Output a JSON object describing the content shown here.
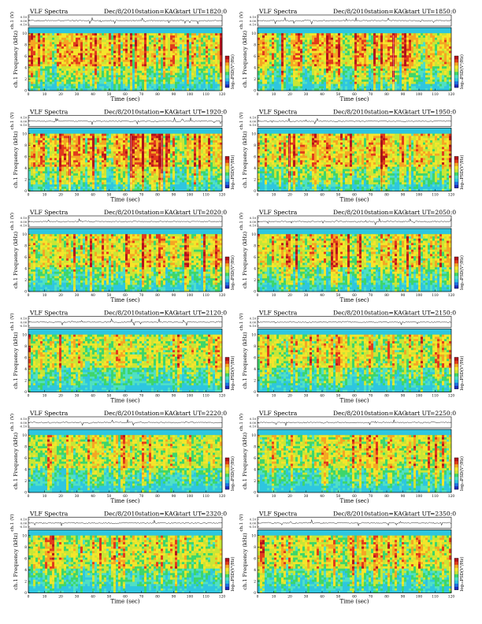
{
  "chart_data": [
    {
      "type": "heatmap",
      "title": "VLF Spectra",
      "date": "Dec/8/2010",
      "station": "station=KAG",
      "start_label": "start  UT",
      "start_time": "=1820:0",
      "ts_ylabel": "ch.1 (V)",
      "ts_ticks": [
        "0.10",
        "0.00",
        "-0.10"
      ],
      "ylabel": "ch.1 Frequency  (kHz)",
      "y_ticks": [
        "0",
        "2",
        "4",
        "6",
        "8",
        "10"
      ],
      "xlabel": "Time  (sec)",
      "x_ticks": [
        "0",
        "10",
        "20",
        "30",
        "40",
        "50",
        "60",
        "70",
        "80",
        "90",
        "100",
        "110",
        "120"
      ],
      "xlim": [
        0,
        120
      ],
      "ylim": [
        0,
        10
      ],
      "colorbar_label": "log₁₀PSD(V²/Hz)",
      "activity": "strong"
    },
    {
      "type": "heatmap",
      "title": "VLF Spectra",
      "date": "Dec/8/2010",
      "station": "station=KAG",
      "start_label": "start  UT",
      "start_time": "=1850:0",
      "ts_ylabel": "ch.1 (V)",
      "ts_ticks": [
        "0.10",
        "0.00",
        "-0.10"
      ],
      "ylabel": "ch.1 Frequency  (kHz)",
      "y_ticks": [
        "0",
        "2",
        "4",
        "6",
        "8",
        "10"
      ],
      "xlabel": "Time  (sec)",
      "x_ticks": [
        "0",
        "10",
        "20",
        "30",
        "40",
        "50",
        "60",
        "70",
        "80",
        "90",
        "100",
        "110",
        "120"
      ],
      "xlim": [
        0,
        120
      ],
      "ylim": [
        0,
        10
      ],
      "colorbar_label": "log₁₀PSD(V²/Hz)",
      "activity": "strong"
    },
    {
      "type": "heatmap",
      "title": "VLF Spectra",
      "date": "Dec/8/2010",
      "station": "station=KAG",
      "start_label": "start  UT",
      "start_time": "=1920:0",
      "ts_ylabel": "ch.1 (V)",
      "ts_ticks": [
        "0.10",
        "0.00",
        "-0.10"
      ],
      "ylabel": "ch.1 Frequency  (kHz)",
      "y_ticks": [
        "0",
        "2",
        "4",
        "6",
        "8",
        "10"
      ],
      "xlabel": "Time  (sec)",
      "x_ticks": [
        "0",
        "10",
        "20",
        "30",
        "40",
        "50",
        "60",
        "70",
        "80",
        "90",
        "100",
        "110",
        "120"
      ],
      "xlim": [
        0,
        120
      ],
      "ylim": [
        0,
        10
      ],
      "colorbar_label": "log₁₀PSD(V²/Hz)",
      "activity": "strong"
    },
    {
      "type": "heatmap",
      "title": "VLF Spectra",
      "date": "Dec/8/2010",
      "station": "station=KAG",
      "start_label": "start  UT",
      "start_time": "=1950:0",
      "ts_ylabel": "ch.1 (V)",
      "ts_ticks": [
        "0.10",
        "0.00",
        "-0.10"
      ],
      "ylabel": "ch.1 Frequency  (kHz)",
      "y_ticks": [
        "0",
        "2",
        "4",
        "6",
        "8",
        "10"
      ],
      "xlabel": "Time  (sec)",
      "x_ticks": [
        "0",
        "10",
        "20",
        "30",
        "40",
        "50",
        "60",
        "70",
        "80",
        "90",
        "100",
        "110",
        "120"
      ],
      "xlim": [
        0,
        120
      ],
      "ylim": [
        0,
        10
      ],
      "colorbar_label": "log₁₀PSD(V²/Hz)",
      "activity": "strong"
    },
    {
      "type": "heatmap",
      "title": "VLF Spectra",
      "date": "Dec/8/2010",
      "station": "station=KAG",
      "start_label": "start  UT",
      "start_time": "=2020:0",
      "ts_ylabel": "ch.1 (V)",
      "ts_ticks": [
        "0.10",
        "0.00",
        "-0.10"
      ],
      "ylabel": "ch.1 Frequency  (kHz)",
      "y_ticks": [
        "0",
        "2",
        "4",
        "6",
        "8",
        "10"
      ],
      "xlabel": "Time  (sec)",
      "x_ticks": [
        "0",
        "10",
        "20",
        "30",
        "40",
        "50",
        "60",
        "70",
        "80",
        "90",
        "100",
        "110",
        "120"
      ],
      "xlim": [
        0,
        120
      ],
      "ylim": [
        0,
        10
      ],
      "colorbar_label": "log₁₀PSD(V²/Hz)",
      "activity": "medium"
    },
    {
      "type": "heatmap",
      "title": "VLF Spectra",
      "date": "Dec/8/2010",
      "station": "station=KAG",
      "start_label": "start  UT",
      "start_time": "=2050:0",
      "ts_ylabel": "ch.1 (V)",
      "ts_ticks": [
        "0.10",
        "0.00",
        "-0.10"
      ],
      "ylabel": "ch.1 Frequency  (kHz)",
      "y_ticks": [
        "0",
        "2",
        "4",
        "6",
        "8",
        "10"
      ],
      "xlabel": "Time  (sec)",
      "x_ticks": [
        "0",
        "10",
        "20",
        "30",
        "40",
        "50",
        "60",
        "70",
        "80",
        "90",
        "100",
        "110",
        "120"
      ],
      "xlim": [
        0,
        120
      ],
      "ylim": [
        0,
        10
      ],
      "colorbar_label": "log₁₀PSD(V²/Hz)",
      "activity": "medium"
    },
    {
      "type": "heatmap",
      "title": "VLF Spectra",
      "date": "Dec/8/2010",
      "station": "station=KAG",
      "start_label": "start  UT",
      "start_time": "=2120:0",
      "ts_ylabel": "ch.1 (V)",
      "ts_ticks": [
        "0.10",
        "0.00",
        "-0.10"
      ],
      "ylabel": "ch.1 Frequency  (kHz)",
      "y_ticks": [
        "0",
        "2",
        "4",
        "6",
        "8",
        "10"
      ],
      "xlabel": "Time  (sec)",
      "x_ticks": [
        "0",
        "10",
        "20",
        "30",
        "40",
        "50",
        "60",
        "70",
        "80",
        "90",
        "100",
        "110",
        "120"
      ],
      "xlim": [
        0,
        120
      ],
      "ylim": [
        0,
        10
      ],
      "colorbar_label": "log₁₀PSD(V²/Hz)",
      "activity": "low"
    },
    {
      "type": "heatmap",
      "title": "VLF Spectra",
      "date": "Dec/8/2010",
      "station": "station=KAG",
      "start_label": "start  UT",
      "start_time": "=2150:0",
      "ts_ylabel": "ch.1 (V)",
      "ts_ticks": [
        "0.10",
        "0.00",
        "-0.10"
      ],
      "ylabel": "ch.1 Frequency  (kHz)",
      "y_ticks": [
        "0",
        "2",
        "4",
        "6",
        "8",
        "10"
      ],
      "xlabel": "Time  (sec)",
      "x_ticks": [
        "0",
        "10",
        "20",
        "30",
        "40",
        "50",
        "60",
        "70",
        "80",
        "90",
        "100",
        "110",
        "120"
      ],
      "xlim": [
        0,
        120
      ],
      "ylim": [
        0,
        10
      ],
      "colorbar_label": "log₁₀PSD(V²/Hz)",
      "activity": "low"
    },
    {
      "type": "heatmap",
      "title": "VLF Spectra",
      "date": "Dec/8/2010",
      "station": "station=KAG",
      "start_label": "start  UT",
      "start_time": "=2220:0",
      "ts_ylabel": "ch.1 (V)",
      "ts_ticks": [
        "0.10",
        "0.00",
        "-0.10"
      ],
      "ylabel": "ch.1 Frequency  (kHz)",
      "y_ticks": [
        "0",
        "2",
        "4",
        "6",
        "8",
        "10"
      ],
      "xlabel": "Time  (sec)",
      "x_ticks": [
        "0",
        "10",
        "20",
        "30",
        "40",
        "50",
        "60",
        "70",
        "80",
        "90",
        "100",
        "110",
        "120"
      ],
      "xlim": [
        0,
        120
      ],
      "ylim": [
        0,
        10
      ],
      "colorbar_label": "log₁₀PSD(V²/Hz)",
      "activity": "low"
    },
    {
      "type": "heatmap",
      "title": "VLF Spectra",
      "date": "Dec/8/2010",
      "station": "station=KAG",
      "start_label": "start  UT",
      "start_time": "=2250:0",
      "ts_ylabel": "ch.1 (V)",
      "ts_ticks": [
        "0.10",
        "0.00",
        "-0.10"
      ],
      "ylabel": "ch.1 Frequency  (kHz)",
      "y_ticks": [
        "0",
        "2",
        "4",
        "6",
        "8",
        "10"
      ],
      "xlabel": "Time  (sec)",
      "x_ticks": [
        "0",
        "10",
        "20",
        "30",
        "40",
        "50",
        "60",
        "70",
        "80",
        "90",
        "100",
        "110",
        "120"
      ],
      "xlim": [
        0,
        120
      ],
      "ylim": [
        0,
        10
      ],
      "colorbar_label": "log₁₀PSD(V²/Hz)",
      "activity": "low"
    },
    {
      "type": "heatmap",
      "title": "VLF Spectra",
      "date": "Dec/8/2010",
      "station": "station=KAG",
      "start_label": "start  UT",
      "start_time": "=2320:0",
      "ts_ylabel": "ch.1 (V)",
      "ts_ticks": [
        "0.10",
        "0.00",
        "-0.10"
      ],
      "ylabel": "ch.1 Frequency  (kHz)",
      "y_ticks": [
        "0",
        "2",
        "4",
        "6",
        "8",
        "10"
      ],
      "xlabel": "Time  (sec)",
      "x_ticks": [
        "0",
        "10",
        "20",
        "30",
        "40",
        "50",
        "60",
        "70",
        "80",
        "90",
        "100",
        "110",
        "120"
      ],
      "xlim": [
        0,
        120
      ],
      "ylim": [
        0,
        10
      ],
      "colorbar_label": "log₁₀PSD(V²/Hz)",
      "activity": "low"
    },
    {
      "type": "heatmap",
      "title": "VLF Spectra",
      "date": "Dec/8/2010",
      "station": "station=KAG",
      "start_label": "start  UT",
      "start_time": "=2350:0",
      "ts_ylabel": "ch.1 (V)",
      "ts_ticks": [
        "0.10",
        "0.00",
        "-0.10"
      ],
      "ylabel": "ch.1 Frequency  (kHz)",
      "y_ticks": [
        "0",
        "2",
        "4",
        "6",
        "8",
        "10"
      ],
      "xlabel": "Time  (sec)",
      "x_ticks": [
        "0",
        "10",
        "20",
        "30",
        "40",
        "50",
        "60",
        "70",
        "80",
        "90",
        "100",
        "110",
        "120"
      ],
      "xlim": [
        0,
        120
      ],
      "ylim": [
        0,
        10
      ],
      "colorbar_label": "log₁₀PSD(V²/Hz)",
      "activity": "low"
    }
  ],
  "colormap": [
    "#1f2bbd",
    "#1e73e6",
    "#2ec6e0",
    "#4fe0c4",
    "#3ed66a",
    "#c9e635",
    "#f5e52b",
    "#f5a623",
    "#e23a1c",
    "#b5121b"
  ]
}
